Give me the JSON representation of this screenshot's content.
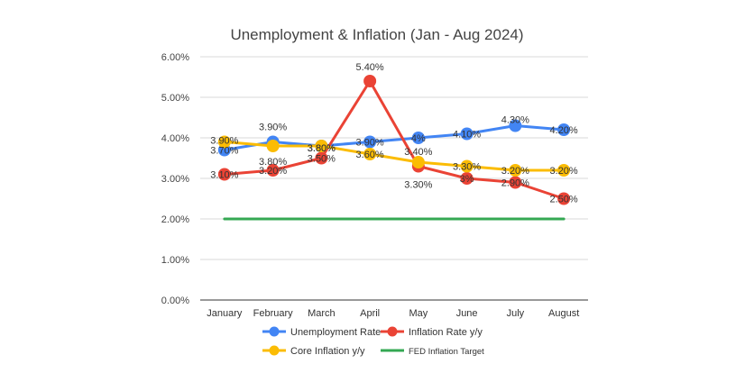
{
  "chart_data": {
    "type": "line",
    "title": "Unemployment & Inflation (Jan - Aug 2024)",
    "categories": [
      "January",
      "February",
      "March",
      "April",
      "May",
      "June",
      "July",
      "August"
    ],
    "y_ticks": [
      "0.00%",
      "1.00%",
      "2.00%",
      "3.00%",
      "4.00%",
      "5.00%",
      "6.00%"
    ],
    "ylim": [
      0,
      6
    ],
    "grid": true,
    "legend_position": "bottom",
    "series": [
      {
        "name": "Unemployment Rate",
        "color": "#4285f4",
        "values": [
          3.7,
          3.9,
          3.8,
          3.9,
          4.0,
          4.1,
          4.3,
          4.2
        ],
        "labels": [
          "3.70%",
          "3.90%",
          "3.80%",
          "3.90%",
          "4%",
          "4.10%",
          "4.30%",
          "4.20%"
        ]
      },
      {
        "name": "Inflation Rate y/y",
        "color": "#ea4335",
        "values": [
          3.1,
          3.2,
          3.5,
          5.4,
          3.3,
          3.0,
          2.9,
          2.5
        ],
        "labels": [
          "3.10%",
          "3.20%",
          "3.50%",
          "5.40%",
          "3.30%",
          "3%",
          "2.90%",
          "2.50%"
        ]
      },
      {
        "name": "Core Inflation y/y",
        "color": "#fbbc04",
        "values": [
          3.9,
          3.8,
          3.8,
          3.6,
          3.4,
          3.3,
          3.2,
          3.2
        ],
        "labels": [
          "3.90%",
          "3.80%",
          "3.80%",
          "3.60%",
          "3.40%",
          "3.30%",
          "3.20%",
          "3.20%"
        ]
      },
      {
        "name": "FED Inflation Target",
        "color": "#34a853",
        "values": [
          2.0,
          2.0,
          2.0,
          2.0,
          2.0,
          2.0,
          2.0,
          2.0
        ],
        "labels": [],
        "markers": false
      }
    ]
  }
}
